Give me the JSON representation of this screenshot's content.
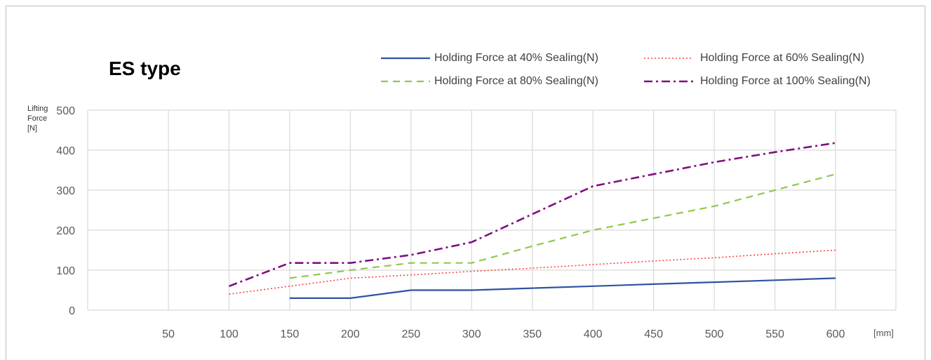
{
  "chart_data": {
    "type": "line",
    "title": "ES type",
    "ylabel": "Lifting\nForce\n[N]",
    "xunit": "[mm]",
    "x": [
      50,
      100,
      150,
      200,
      250,
      300,
      350,
      400,
      450,
      500,
      550,
      600
    ],
    "ylim": [
      0,
      500
    ],
    "yticks": [
      0,
      100,
      200,
      300,
      400,
      500
    ],
    "grid": true,
    "legend_position": "top-right",
    "series": [
      {
        "name": "Holding Force at 40% Sealing(N)",
        "color": "#2f52a4",
        "dash": "solid",
        "values": [
          null,
          null,
          30,
          30,
          50,
          50,
          55,
          60,
          65,
          70,
          75,
          80
        ]
      },
      {
        "name": "Holding Force at 60% Sealing(N)",
        "color": "#ff4040",
        "dash": "dotted",
        "values": [
          null,
          40,
          60,
          80,
          88,
          97,
          105,
          114,
          123,
          131,
          141,
          150
        ]
      },
      {
        "name": "Holding Force at 80% Sealing(N)",
        "color": "#8fc84f",
        "dash": "dashed",
        "values": [
          null,
          null,
          80,
          100,
          118,
          118,
          160,
          200,
          230,
          260,
          300,
          340
        ]
      },
      {
        "name": "Holding Force at 100% Sealing(N)",
        "color": "#7f0f80",
        "dash": "dashdot",
        "values": [
          null,
          60,
          118,
          118,
          138,
          170,
          240,
          310,
          340,
          370,
          395,
          418
        ]
      }
    ]
  }
}
